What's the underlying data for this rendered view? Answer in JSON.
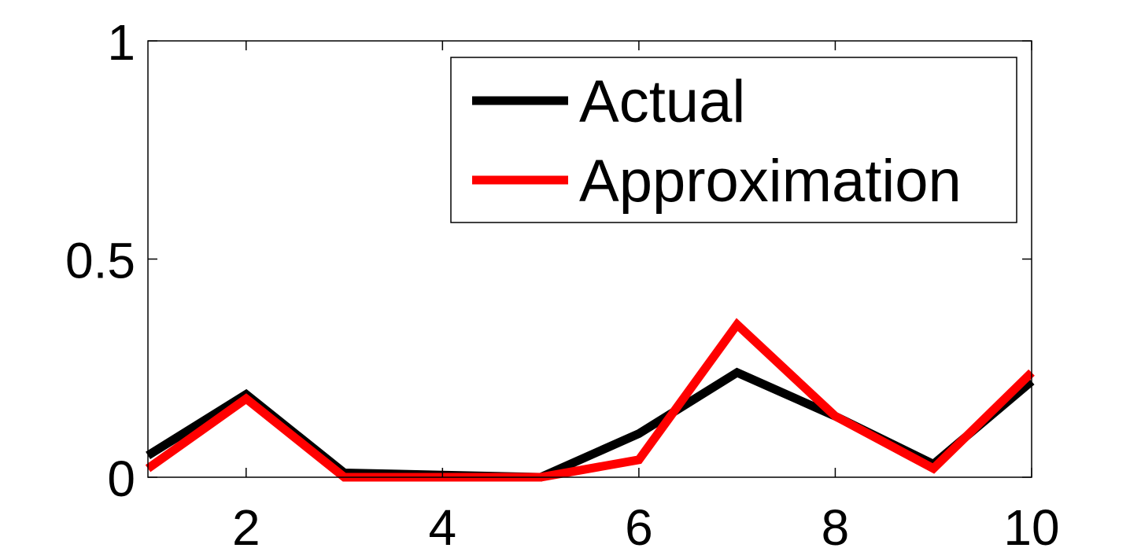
{
  "chart_data": {
    "type": "line",
    "title": "",
    "xlabel": "",
    "ylabel": "",
    "xlim": [
      1,
      10
    ],
    "ylim": [
      0,
      1
    ],
    "xticks": [
      2,
      4,
      6,
      8,
      10
    ],
    "yticks": [
      0,
      0.5,
      1
    ],
    "xtick_labels": [
      "2",
      "4",
      "6",
      "8",
      "10"
    ],
    "ytick_labels": [
      "0",
      "0.5",
      "1"
    ],
    "grid": false,
    "legend_position": "top-right",
    "series": [
      {
        "name": "Actual",
        "color": "#000000",
        "x": [
          1,
          2,
          3,
          4,
          5,
          6,
          7,
          8,
          9,
          10
        ],
        "values": [
          0.05,
          0.19,
          0.01,
          0.005,
          0.0,
          0.1,
          0.24,
          0.14,
          0.03,
          0.22
        ]
      },
      {
        "name": "Approximation",
        "color": "#ff0000",
        "x": [
          1,
          2,
          3,
          4,
          5,
          6,
          7,
          8,
          9,
          10
        ],
        "values": [
          0.02,
          0.18,
          0.0,
          0.0,
          0.0,
          0.04,
          0.35,
          0.14,
          0.02,
          0.24
        ]
      }
    ]
  }
}
